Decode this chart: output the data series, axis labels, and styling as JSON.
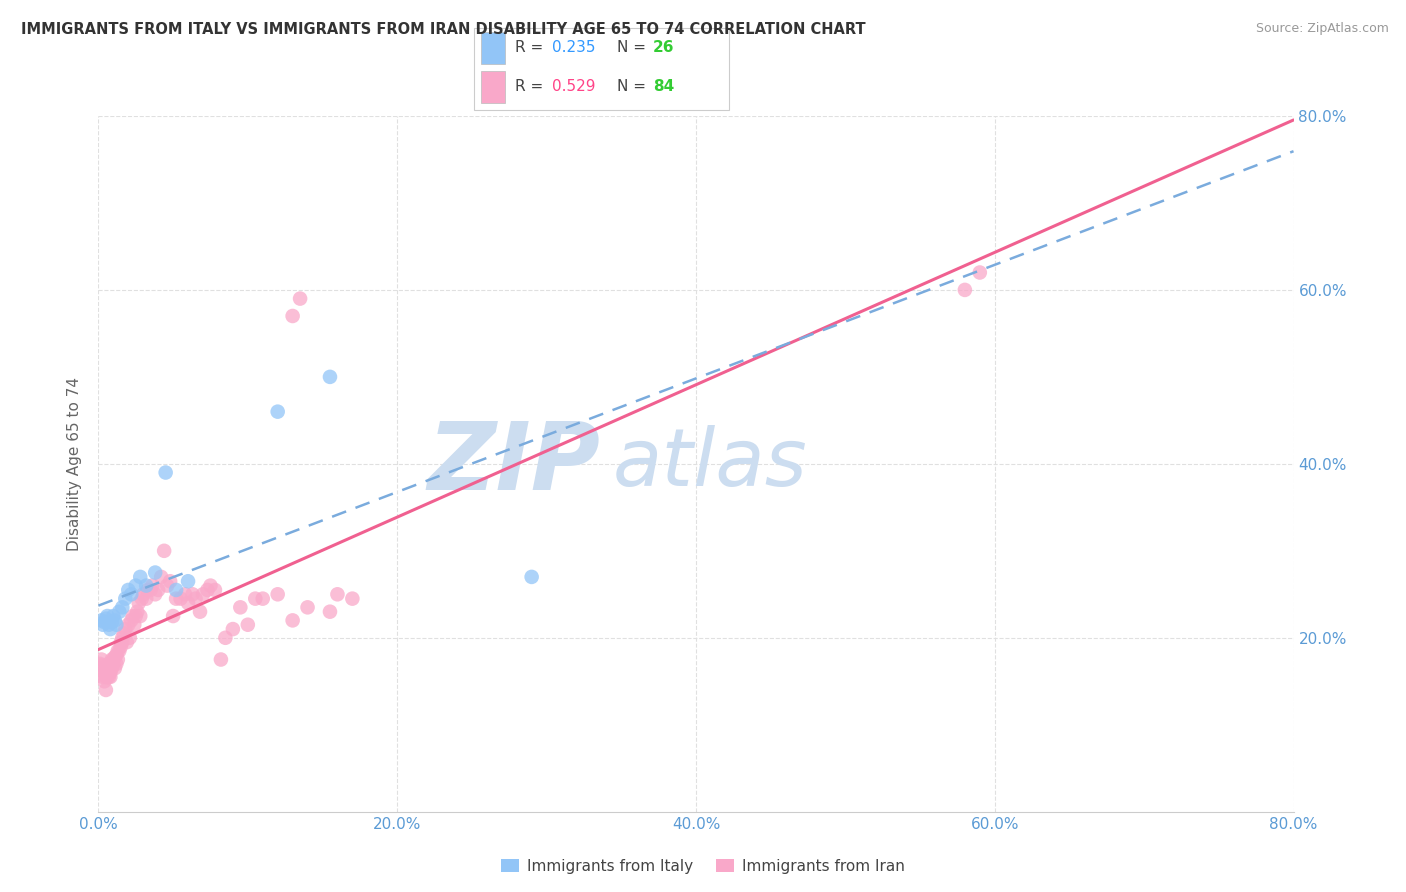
{
  "title": "IMMIGRANTS FROM ITALY VS IMMIGRANTS FROM IRAN DISABILITY AGE 65 TO 74 CORRELATION CHART",
  "source": "Source: ZipAtlas.com",
  "ylabel": "Disability Age 65 to 74",
  "xlim": [
    0.0,
    0.8
  ],
  "ylim": [
    0.0,
    0.8
  ],
  "xtick_labels": [
    "0.0%",
    "20.0%",
    "40.0%",
    "60.0%",
    "80.0%"
  ],
  "xtick_vals": [
    0.0,
    0.2,
    0.4,
    0.6,
    0.8
  ],
  "ytick_labels": [
    "20.0%",
    "40.0%",
    "60.0%",
    "80.0%"
  ],
  "ytick_vals": [
    0.2,
    0.4,
    0.6,
    0.8
  ],
  "italy_color": "#92c5f7",
  "iran_color": "#f9a8c9",
  "italy_line_color": "#7aabdd",
  "iran_line_color": "#f06090",
  "italy_R": 0.235,
  "italy_N": 26,
  "iran_R": 0.529,
  "iran_N": 84,
  "legend_R_italy_color": "#3399ff",
  "legend_N_italy_color": "#33cc33",
  "legend_R_iran_color": "#ff4488",
  "legend_N_iran_color": "#33cc33",
  "italy_x": [
    0.002,
    0.003,
    0.004,
    0.005,
    0.006,
    0.007,
    0.008,
    0.009,
    0.01,
    0.011,
    0.012,
    0.014,
    0.016,
    0.018,
    0.02,
    0.022,
    0.025,
    0.028,
    0.032,
    0.038,
    0.045,
    0.052,
    0.06,
    0.12,
    0.155,
    0.29
  ],
  "italy_y": [
    0.22,
    0.215,
    0.218,
    0.222,
    0.225,
    0.215,
    0.21,
    0.218,
    0.225,
    0.22,
    0.215,
    0.23,
    0.235,
    0.245,
    0.255,
    0.25,
    0.26,
    0.27,
    0.26,
    0.275,
    0.39,
    0.255,
    0.265,
    0.46,
    0.5,
    0.27
  ],
  "iran_x": [
    0.001,
    0.002,
    0.002,
    0.003,
    0.003,
    0.004,
    0.004,
    0.005,
    0.005,
    0.006,
    0.006,
    0.007,
    0.007,
    0.008,
    0.008,
    0.008,
    0.009,
    0.009,
    0.01,
    0.01,
    0.011,
    0.011,
    0.012,
    0.012,
    0.013,
    0.013,
    0.014,
    0.015,
    0.015,
    0.016,
    0.016,
    0.017,
    0.018,
    0.019,
    0.02,
    0.021,
    0.022,
    0.023,
    0.024,
    0.025,
    0.026,
    0.027,
    0.028,
    0.029,
    0.03,
    0.032,
    0.033,
    0.035,
    0.036,
    0.038,
    0.04,
    0.042,
    0.044,
    0.046,
    0.048,
    0.05,
    0.052,
    0.055,
    0.058,
    0.06,
    0.063,
    0.065,
    0.068,
    0.07,
    0.073,
    0.075,
    0.078,
    0.082,
    0.085,
    0.09,
    0.095,
    0.1,
    0.105,
    0.11,
    0.12,
    0.13,
    0.14,
    0.155,
    0.16,
    0.17,
    0.13,
    0.135,
    0.58,
    0.59
  ],
  "iran_y": [
    0.17,
    0.175,
    0.168,
    0.155,
    0.165,
    0.15,
    0.16,
    0.14,
    0.155,
    0.155,
    0.165,
    0.17,
    0.155,
    0.16,
    0.165,
    0.155,
    0.175,
    0.165,
    0.17,
    0.175,
    0.165,
    0.178,
    0.17,
    0.18,
    0.175,
    0.185,
    0.185,
    0.195,
    0.19,
    0.2,
    0.195,
    0.205,
    0.21,
    0.195,
    0.215,
    0.2,
    0.22,
    0.225,
    0.215,
    0.225,
    0.23,
    0.24,
    0.225,
    0.245,
    0.25,
    0.245,
    0.255,
    0.255,
    0.26,
    0.25,
    0.255,
    0.27,
    0.3,
    0.26,
    0.265,
    0.225,
    0.245,
    0.245,
    0.25,
    0.24,
    0.25,
    0.245,
    0.23,
    0.25,
    0.255,
    0.26,
    0.255,
    0.175,
    0.2,
    0.21,
    0.235,
    0.215,
    0.245,
    0.245,
    0.25,
    0.22,
    0.235,
    0.23,
    0.25,
    0.245,
    0.57,
    0.59,
    0.6,
    0.62
  ],
  "background_color": "#ffffff",
  "grid_color": "#e0e0e0",
  "watermark_zip": "ZIP",
  "watermark_atlas": "atlas",
  "watermark_color": "#ccddf0"
}
